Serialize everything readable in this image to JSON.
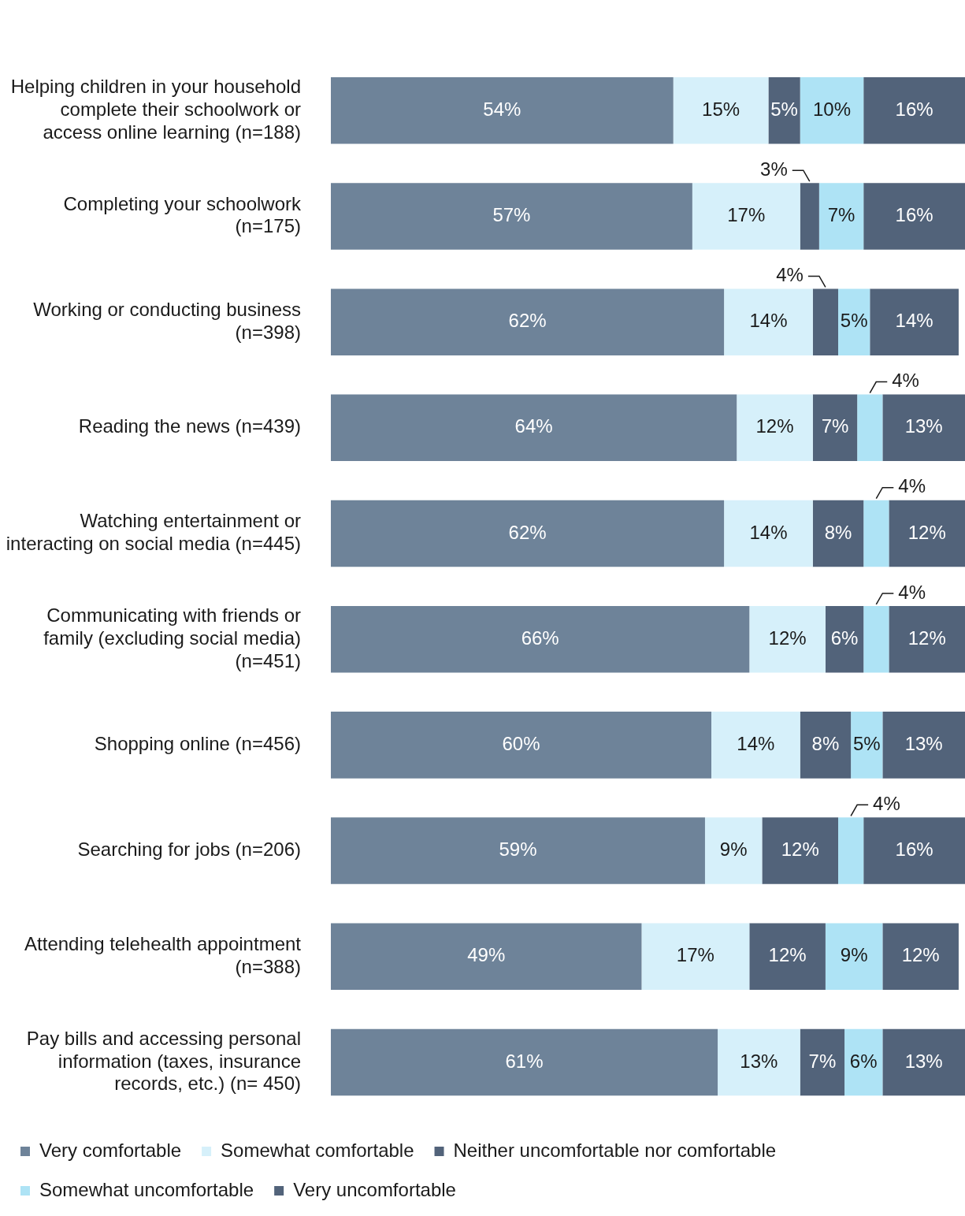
{
  "chart_data": {
    "type": "bar",
    "orientation": "horizontal",
    "stacked": true,
    "legend": "bottom",
    "tick_labels": "y",
    "categories": [
      "Helping children in your household complete their schoolwork or access online learning (n=188)",
      "Completing your schoolwork (n=175)",
      "Working or conducting business (n=398)",
      "Reading the news (n=439)",
      "Watching entertainment or interacting on social media (n=445)",
      "Communicating with friends or family (excluding social media) (n=451)",
      "Shopping online (n=456)",
      "Searching for jobs (n=206)",
      "Attending telehealth appointment (n=388)",
      "Pay bills and accessing personal information (taxes, insurance records, etc.) (n= 450)"
    ],
    "series": [
      {
        "name": "Very comfortable",
        "color": "#6e8399",
        "values": [
          54,
          57,
          62,
          64,
          62,
          66,
          60,
          59,
          49,
          61
        ],
        "value_labels": [
          "54%",
          "57%",
          "62%",
          "64%",
          "62%",
          "66%",
          "60%",
          "59%",
          "49%",
          "61%"
        ]
      },
      {
        "name": "Somewhat comfortable",
        "color": "#d6f0fa",
        "values": [
          15,
          17,
          14,
          12,
          14,
          12,
          14,
          9,
          17,
          13
        ],
        "value_labels": [
          "15%",
          "17%",
          "14%",
          "12%",
          "14%",
          "12%",
          "14%",
          "9%",
          "17%",
          "13%"
        ]
      },
      {
        "name": "Neither uncomfortable nor comfortable",
        "color": "#52637a",
        "values": [
          5,
          3,
          4,
          7,
          8,
          6,
          8,
          12,
          12,
          7
        ],
        "value_labels": [
          "5%",
          "3%",
          "4%",
          "7%",
          "8%",
          "6%",
          "8%",
          "12%",
          "12%",
          "7%"
        ]
      },
      {
        "name": "Somewhat uncomfortable",
        "color": "#aee3f5",
        "values": [
          10,
          7,
          5,
          4,
          4,
          4,
          5,
          4,
          9,
          6
        ],
        "value_labels": [
          "10%",
          "7%",
          "5%",
          "4%",
          "4%",
          "4%",
          "5%",
          "4%",
          "9%",
          "6%"
        ]
      },
      {
        "name": "Very uncomfortable",
        "color": "#52637a",
        "values": [
          16,
          16,
          14,
          13,
          12,
          12,
          13,
          16,
          12,
          13
        ],
        "value_labels": [
          "16%",
          "16%",
          "14%",
          "13%",
          "12%",
          "12%",
          "13%",
          "16%",
          "12%",
          "13%"
        ]
      }
    ]
  }
}
